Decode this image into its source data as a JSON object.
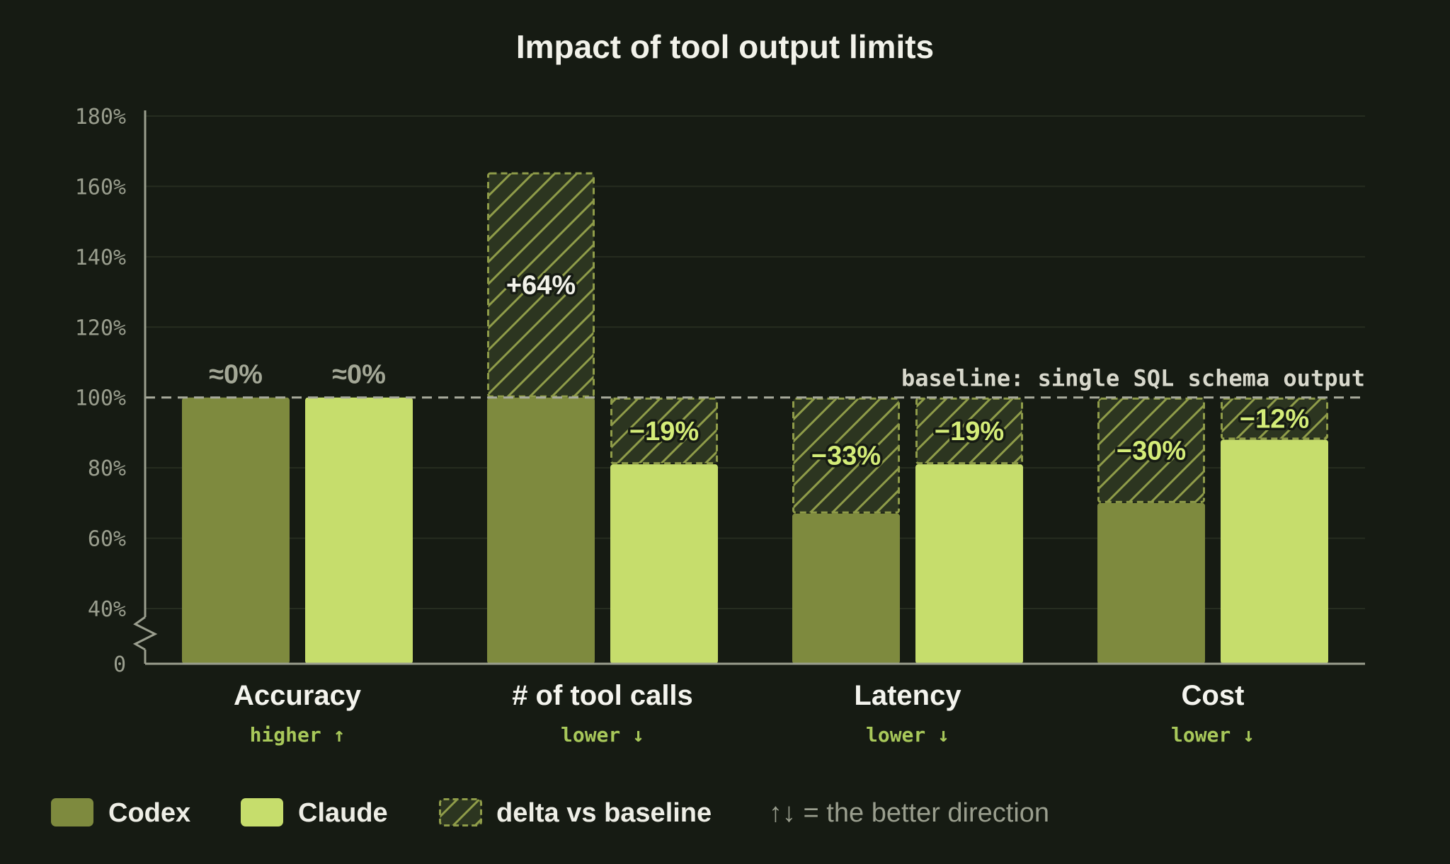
{
  "chart_data": {
    "type": "bar",
    "title": "Impact of tool output limits",
    "baseline": {
      "value": 100,
      "label": "baseline: single SQL schema output"
    },
    "yticks": [
      "0",
      "40%",
      "60%",
      "80%",
      "100%",
      "120%",
      "140%",
      "160%",
      "180%"
    ],
    "ylim": [
      0,
      180
    ],
    "axis_break": true,
    "grid": true,
    "categories": [
      {
        "name": "Accuracy",
        "direction": "higher ↑"
      },
      {
        "name": "# of tool calls",
        "direction": "lower ↓"
      },
      {
        "name": "Latency",
        "direction": "lower ↓"
      },
      {
        "name": "Cost",
        "direction": "lower ↓"
      }
    ],
    "series": [
      {
        "name": "Codex",
        "color": "#7e8a3e",
        "values": [
          100,
          164,
          67,
          70
        ],
        "labels": [
          "≈0%",
          "+64%",
          "−33%",
          "−30%"
        ]
      },
      {
        "name": "Claude",
        "color": "#c6dd6c",
        "values": [
          100,
          81,
          81,
          88
        ],
        "labels": [
          "≈0%",
          "−19%",
          "−19%",
          "−12%"
        ]
      }
    ],
    "legend": {
      "position": "bottom-left",
      "items": [
        {
          "label": "Codex",
          "color": "#7e8a3e"
        },
        {
          "label": "Claude",
          "color": "#c6dd6c"
        },
        {
          "label": "delta vs baseline",
          "pattern": "hatched"
        }
      ],
      "note": "↑↓ = the better direction"
    }
  }
}
